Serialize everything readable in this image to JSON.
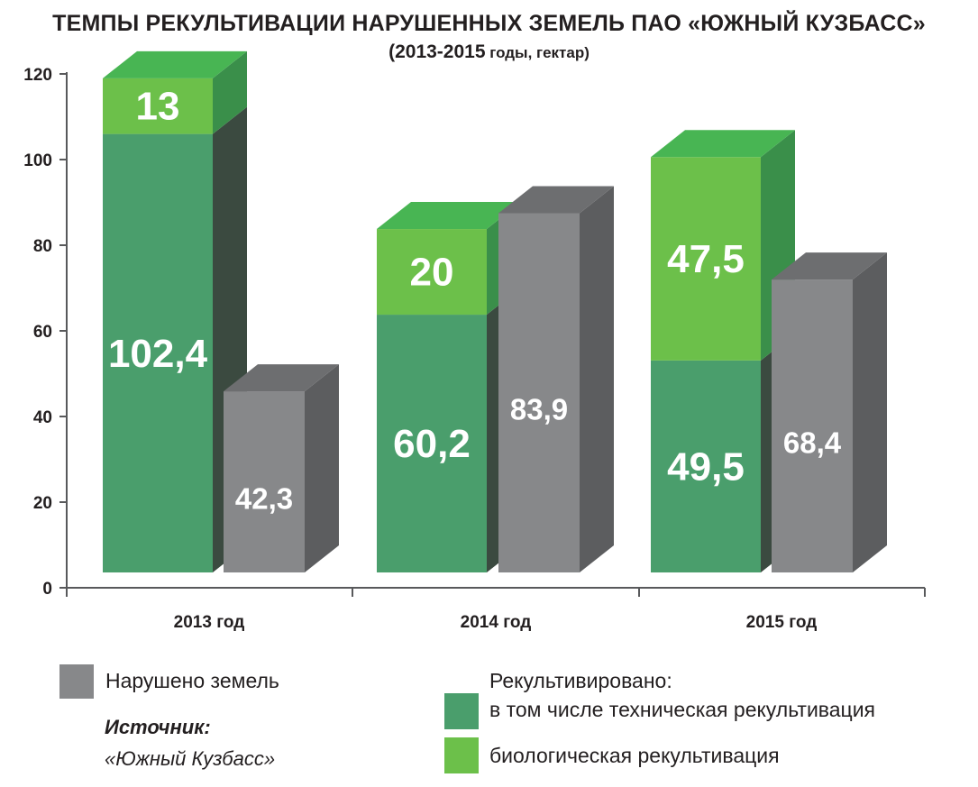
{
  "header": {
    "title": "ТЕМПЫ РЕКУЛЬТИВАЦИИ НАРУШЕННЫХ ЗЕМЕЛЬ ПАО «ЮЖНЫЙ КУЗБАСС»",
    "subtitle_years": "(2013-2015",
    "subtitle_units": " годы, гектар)"
  },
  "colors": {
    "disturbed": "#87888a",
    "technical": "#4a9e6c",
    "biological": "#6cc04a",
    "top_green": "#48b553",
    "side_green_dark": "#3b4a40",
    "side_green_light": "#3a8f4a",
    "top_gray": "#6d6e70",
    "side_gray": "#5c5d5f"
  },
  "legend": {
    "disturbed": "Нарушено земель",
    "reclaimed_header": "Рекультивировано:",
    "technical": "в том числе техническая рекультивация",
    "biological": "биологическая рекультивация"
  },
  "source": {
    "label": "Источник:",
    "text": "«Южный Кузбасс»"
  },
  "chart_data": {
    "type": "bar",
    "categories": [
      "2013 год",
      "2014 год",
      "2015 год"
    ],
    "ylim": [
      0,
      120
    ],
    "yticks": [
      0,
      20,
      40,
      60,
      80,
      100,
      120
    ],
    "stacked_group": {
      "technical": {
        "values": [
          102.4,
          60.2,
          49.5
        ],
        "labels": [
          "102,4",
          "60,2",
          "49,5"
        ]
      },
      "biological": {
        "values": [
          13,
          20,
          47.5
        ],
        "labels": [
          "13",
          "20",
          "47,5"
        ]
      }
    },
    "disturbed": {
      "values": [
        42.3,
        83.9,
        68.4
      ],
      "labels": [
        "42,3",
        "83,9",
        "68,4"
      ]
    }
  }
}
